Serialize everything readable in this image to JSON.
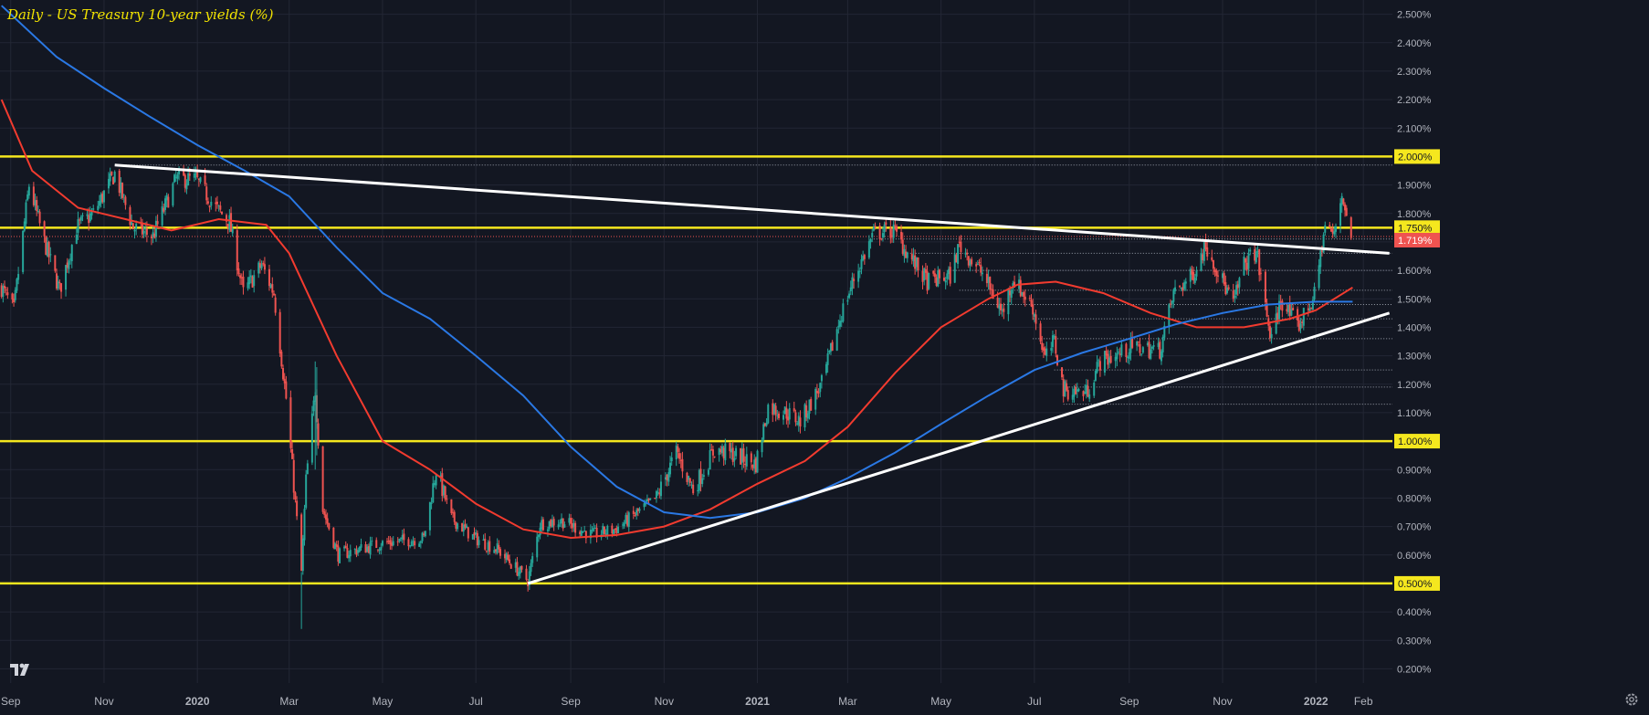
{
  "header": {
    "title": "Daily - US Treasury 10-year yields (%)"
  },
  "colors": {
    "background": "#131722",
    "grid": "#232734",
    "axis_text": "#b2b5be",
    "up": "#26a69a",
    "down": "#ef5350",
    "ma_red": "#f23b2f",
    "ma_blue": "#2a78e4",
    "yellow": "#f5e71e",
    "trend": "#ffffff"
  },
  "icons": {
    "logo": "tradingview-logo-icon",
    "settings": "gear-icon"
  },
  "chart_data": {
    "type": "candlestick",
    "title": "Daily - US Treasury 10-year yields (%)",
    "ylim": [
      0.15,
      2.55
    ],
    "x_range": [
      "2019-08-25",
      "2022-02-20"
    ],
    "x_tick_labels": [
      {
        "date": "2019-09-01",
        "label": "Sep"
      },
      {
        "date": "2019-11-01",
        "label": "Nov"
      },
      {
        "date": "2020-01-01",
        "label": "2020"
      },
      {
        "date": "2020-03-01",
        "label": "Mar"
      },
      {
        "date": "2020-05-01",
        "label": "May"
      },
      {
        "date": "2020-07-01",
        "label": "Jul"
      },
      {
        "date": "2020-09-01",
        "label": "Sep"
      },
      {
        "date": "2020-11-01",
        "label": "Nov"
      },
      {
        "date": "2021-01-01",
        "label": "2021"
      },
      {
        "date": "2021-03-01",
        "label": "Mar"
      },
      {
        "date": "2021-05-01",
        "label": "May"
      },
      {
        "date": "2021-07-01",
        "label": "Jul"
      },
      {
        "date": "2021-09-01",
        "label": "Sep"
      },
      {
        "date": "2021-11-01",
        "label": "Nov"
      },
      {
        "date": "2022-01-01",
        "label": "2022"
      },
      {
        "date": "2022-02-01",
        "label": "Feb"
      }
    ],
    "y_tick_labels": [
      "0.200%",
      "0.300%",
      "0.400%",
      "0.500%",
      "0.600%",
      "0.700%",
      "0.800%",
      "0.900%",
      "1.000%",
      "1.100%",
      "1.200%",
      "1.300%",
      "1.400%",
      "1.500%",
      "1.600%",
      "1.700%",
      "1.800%",
      "1.900%",
      "2.000%",
      "2.100%",
      "2.200%",
      "2.300%",
      "2.400%",
      "2.500%"
    ],
    "y_tick_values": [
      0.2,
      0.3,
      0.4,
      0.5,
      0.6,
      0.7,
      0.8,
      0.9,
      1.0,
      1.1,
      1.2,
      1.3,
      1.4,
      1.5,
      1.6,
      1.7,
      1.8,
      1.9,
      2.0,
      2.1,
      2.2,
      2.3,
      2.4,
      2.5
    ],
    "price_key": [
      [
        "2019-08-26",
        1.54
      ],
      [
        "2019-09-03",
        1.46
      ],
      [
        "2019-09-13",
        1.9
      ],
      [
        "2019-09-23",
        1.7
      ],
      [
        "2019-10-03",
        1.53
      ],
      [
        "2019-10-14",
        1.75
      ],
      [
        "2019-10-25",
        1.8
      ],
      [
        "2019-11-08",
        1.94
      ],
      [
        "2019-11-20",
        1.75
      ],
      [
        "2019-12-03",
        1.72
      ],
      [
        "2019-12-18",
        1.92
      ],
      [
        "2019-12-31",
        1.92
      ],
      [
        "2020-01-13",
        1.82
      ],
      [
        "2020-01-22",
        1.77
      ],
      [
        "2020-01-31",
        1.52
      ],
      [
        "2020-02-12",
        1.62
      ],
      [
        "2020-02-20",
        1.52
      ],
      [
        "2020-02-28",
        1.15
      ],
      [
        "2020-03-09",
        0.54
      ],
      [
        "2020-03-12",
        0.86
      ],
      [
        "2020-03-18",
        1.18
      ],
      [
        "2020-03-23",
        0.76
      ],
      [
        "2020-04-02",
        0.6
      ],
      [
        "2020-04-16",
        0.62
      ],
      [
        "2020-04-30",
        0.64
      ],
      [
        "2020-05-15",
        0.65
      ],
      [
        "2020-05-28",
        0.66
      ],
      [
        "2020-06-05",
        0.9
      ],
      [
        "2020-06-15",
        0.73
      ],
      [
        "2020-06-30",
        0.66
      ],
      [
        "2020-07-15",
        0.62
      ],
      [
        "2020-08-04",
        0.51
      ],
      [
        "2020-08-12",
        0.71
      ],
      [
        "2020-08-26",
        0.72
      ],
      [
        "2020-09-15",
        0.67
      ],
      [
        "2020-09-30",
        0.69
      ],
      [
        "2020-10-15",
        0.75
      ],
      [
        "2020-10-27",
        0.8
      ],
      [
        "2020-11-09",
        0.96
      ],
      [
        "2020-11-20",
        0.83
      ],
      [
        "2020-12-04",
        0.97
      ],
      [
        "2020-12-18",
        0.95
      ],
      [
        "2020-12-31",
        0.92
      ],
      [
        "2021-01-08",
        1.12
      ],
      [
        "2021-01-20",
        1.1
      ],
      [
        "2021-01-29",
        1.07
      ],
      [
        "2021-02-12",
        1.2
      ],
      [
        "2021-02-25",
        1.45
      ],
      [
        "2021-03-05",
        1.57
      ],
      [
        "2021-03-18",
        1.73
      ],
      [
        "2021-03-31",
        1.74
      ],
      [
        "2021-04-09",
        1.66
      ],
      [
        "2021-04-22",
        1.56
      ],
      [
        "2021-05-07",
        1.58
      ],
      [
        "2021-05-13",
        1.69
      ],
      [
        "2021-05-28",
        1.59
      ],
      [
        "2021-06-10",
        1.45
      ],
      [
        "2021-06-17",
        1.57
      ],
      [
        "2021-06-30",
        1.47
      ],
      [
        "2021-07-08",
        1.29
      ],
      [
        "2021-07-14",
        1.35
      ],
      [
        "2021-07-20",
        1.18
      ],
      [
        "2021-08-04",
        1.17
      ],
      [
        "2021-08-13",
        1.28
      ],
      [
        "2021-08-27",
        1.31
      ],
      [
        "2021-09-03",
        1.33
      ],
      [
        "2021-09-21",
        1.32
      ],
      [
        "2021-09-30",
        1.52
      ],
      [
        "2021-10-12",
        1.58
      ],
      [
        "2021-10-21",
        1.69
      ],
      [
        "2021-11-02",
        1.55
      ],
      [
        "2021-11-08",
        1.48
      ],
      [
        "2021-11-15",
        1.62
      ],
      [
        "2021-11-23",
        1.67
      ],
      [
        "2021-11-30",
        1.44
      ],
      [
        "2021-12-03",
        1.35
      ],
      [
        "2021-12-09",
        1.5
      ],
      [
        "2021-12-20",
        1.4
      ],
      [
        "2021-12-31",
        1.51
      ],
      [
        "2022-01-07",
        1.76
      ],
      [
        "2022-01-13",
        1.72
      ],
      [
        "2022-01-18",
        1.87
      ],
      [
        "2022-01-24",
        1.72
      ]
    ],
    "seed": 7,
    "series": [
      {
        "name": "",
        "type": "ma",
        "color": "#f23b2f",
        "points": [
          [
            "2019-08-26",
            2.2
          ],
          [
            "2019-09-15",
            1.95
          ],
          [
            "2019-10-15",
            1.82
          ],
          [
            "2019-11-15",
            1.78
          ],
          [
            "2019-12-15",
            1.74
          ],
          [
            "2020-01-15",
            1.78
          ],
          [
            "2020-02-15",
            1.76
          ],
          [
            "2020-03-01",
            1.66
          ],
          [
            "2020-04-01",
            1.3
          ],
          [
            "2020-05-01",
            1.0
          ],
          [
            "2020-06-01",
            0.9
          ],
          [
            "2020-07-01",
            0.78
          ],
          [
            "2020-08-01",
            0.69
          ],
          [
            "2020-09-01",
            0.66
          ],
          [
            "2020-10-01",
            0.67
          ],
          [
            "2020-11-01",
            0.7
          ],
          [
            "2020-12-01",
            0.76
          ],
          [
            "2021-01-01",
            0.85
          ],
          [
            "2021-02-01",
            0.93
          ],
          [
            "2021-03-01",
            1.05
          ],
          [
            "2021-04-01",
            1.24
          ],
          [
            "2021-05-01",
            1.4
          ],
          [
            "2021-06-01",
            1.5
          ],
          [
            "2021-06-20",
            1.55
          ],
          [
            "2021-07-15",
            1.56
          ],
          [
            "2021-08-15",
            1.52
          ],
          [
            "2021-09-15",
            1.45
          ],
          [
            "2021-10-15",
            1.4
          ],
          [
            "2021-11-15",
            1.4
          ],
          [
            "2021-12-15",
            1.43
          ],
          [
            "2022-01-01",
            1.46
          ],
          [
            "2022-01-25",
            1.54
          ]
        ]
      },
      {
        "name": "",
        "type": "ma",
        "color": "#2a78e4",
        "points": [
          [
            "2019-08-26",
            2.53
          ],
          [
            "2019-10-01",
            2.35
          ],
          [
            "2019-11-01",
            2.24
          ],
          [
            "2019-12-01",
            2.14
          ],
          [
            "2020-01-01",
            2.04
          ],
          [
            "2020-02-01",
            1.95
          ],
          [
            "2020-03-01",
            1.86
          ],
          [
            "2020-04-01",
            1.68
          ],
          [
            "2020-05-01",
            1.52
          ],
          [
            "2020-06-01",
            1.43
          ],
          [
            "2020-07-01",
            1.3
          ],
          [
            "2020-08-01",
            1.16
          ],
          [
            "2020-09-01",
            0.98
          ],
          [
            "2020-10-01",
            0.84
          ],
          [
            "2020-11-01",
            0.75
          ],
          [
            "2020-12-01",
            0.73
          ],
          [
            "2021-01-01",
            0.75
          ],
          [
            "2021-02-01",
            0.8
          ],
          [
            "2021-03-01",
            0.87
          ],
          [
            "2021-04-01",
            0.96
          ],
          [
            "2021-05-01",
            1.06
          ],
          [
            "2021-06-01",
            1.16
          ],
          [
            "2021-07-01",
            1.25
          ],
          [
            "2021-08-01",
            1.31
          ],
          [
            "2021-09-01",
            1.36
          ],
          [
            "2021-10-01",
            1.41
          ],
          [
            "2021-11-01",
            1.45
          ],
          [
            "2021-12-01",
            1.48
          ],
          [
            "2022-01-01",
            1.49
          ],
          [
            "2022-01-25",
            1.49
          ]
        ]
      }
    ],
    "horizontal_levels": [
      {
        "value": 2.0,
        "label": "2.000%",
        "color": "#f5e71e"
      },
      {
        "value": 1.75,
        "label": "1.750%",
        "color": "#f5e71e"
      },
      {
        "value": 1.0,
        "label": "1.000%",
        "color": "#f5e71e"
      },
      {
        "value": 0.5,
        "label": "0.500%",
        "color": "#f5e71e"
      }
    ],
    "last_price": {
      "value": 1.719,
      "label": "1.719%",
      "color": "#ef5350"
    },
    "trendlines": [
      {
        "from": [
          "2019-11-08",
          1.97
        ],
        "to": [
          "2022-02-18",
          1.66
        ],
        "color": "#ffffff"
      },
      {
        "from": [
          "2020-08-04",
          0.5
        ],
        "to": [
          "2022-02-18",
          1.45
        ],
        "color": "#ffffff"
      }
    ],
    "dotted_levels": [
      {
        "from": "2019-11-08",
        "value": 1.97
      },
      {
        "from": "2021-03-18",
        "value": 1.71
      },
      {
        "from": "2021-04-09",
        "value": 1.66
      },
      {
        "from": "2021-05-07",
        "value": 1.6
      },
      {
        "from": "2021-05-13",
        "value": 1.53
      },
      {
        "from": "2021-05-28",
        "value": 1.48
      },
      {
        "from": "2021-06-30",
        "value": 1.43
      },
      {
        "from": "2021-06-30",
        "value": 1.36
      },
      {
        "from": "2021-07-14",
        "value": 1.25
      },
      {
        "from": "2021-07-20",
        "value": 1.19
      },
      {
        "from": "2021-07-20",
        "value": 1.13
      }
    ],
    "grid": true,
    "legend": "none"
  }
}
